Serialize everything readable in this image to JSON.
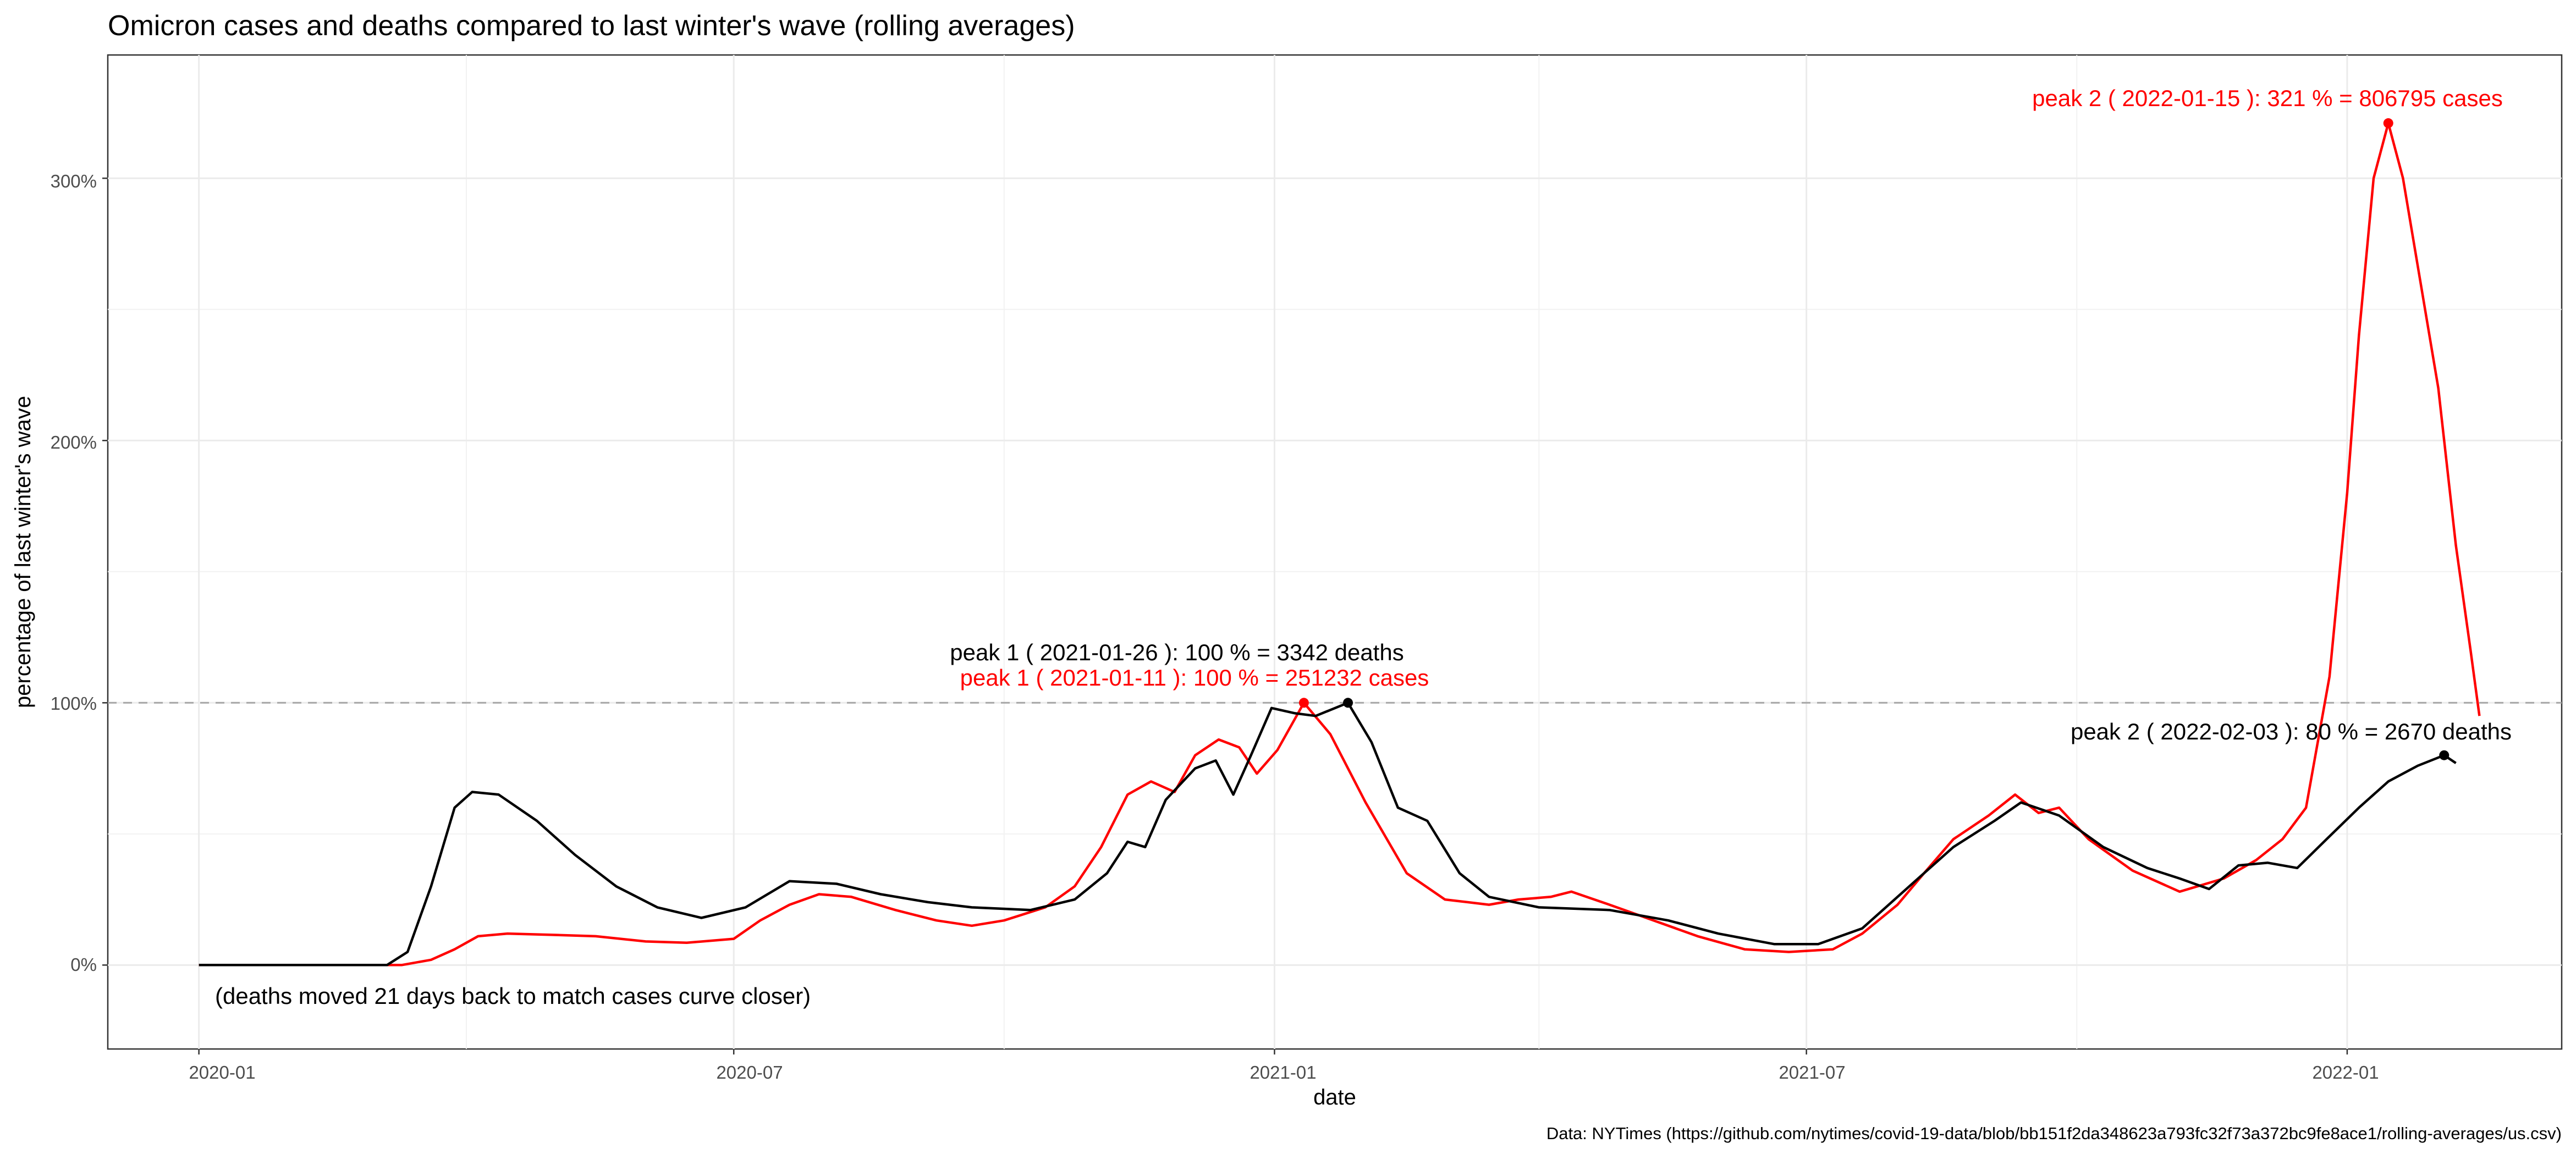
{
  "chart_data": {
    "type": "line",
    "title": "Omicron cases and deaths compared to last winter's wave (rolling averages)",
    "xlabel": "date",
    "ylabel": "percentage of last winter's wave",
    "caption": "Data: NYTimes (https://github.com/nytimes/covid-19-data/blob/bb151f2da348623a793fc32f73a372bc9fe8ace1/rolling-averages/us.csv)",
    "x_ticks": [
      "2020-01",
      "2020-07",
      "2021-01",
      "2021-07",
      "2022-01"
    ],
    "y_ticks": [
      "0%",
      "100%",
      "200%",
      "300%"
    ],
    "xlim": [
      "2019-12-01",
      "2022-03-15"
    ],
    "ylim": [
      -32,
      347
    ],
    "grid": true,
    "reference_line": {
      "y": 100,
      "style": "dashed",
      "color": "#a6a6a6"
    },
    "series": [
      {
        "color": "#ff0000",
        "points": [
          [
            "2020-01-01",
            0
          ],
          [
            "2020-02-15",
            0
          ],
          [
            "2020-03-10",
            0
          ],
          [
            "2020-03-20",
            2
          ],
          [
            "2020-03-28",
            6
          ],
          [
            "2020-04-05",
            11
          ],
          [
            "2020-04-15",
            12
          ],
          [
            "2020-05-01",
            11.5
          ],
          [
            "2020-05-15",
            11
          ],
          [
            "2020-06-01",
            9
          ],
          [
            "2020-06-15",
            8.5
          ],
          [
            "2020-07-01",
            10
          ],
          [
            "2020-07-10",
            17
          ],
          [
            "2020-07-20",
            23
          ],
          [
            "2020-07-30",
            27
          ],
          [
            "2020-08-10",
            26
          ],
          [
            "2020-08-25",
            21
          ],
          [
            "2020-09-08",
            17
          ],
          [
            "2020-09-20",
            15
          ],
          [
            "2020-10-01",
            17
          ],
          [
            "2020-10-15",
            22
          ],
          [
            "2020-10-25",
            30
          ],
          [
            "2020-11-03",
            45
          ],
          [
            "2020-11-12",
            65
          ],
          [
            "2020-11-20",
            70
          ],
          [
            "2020-11-28",
            66
          ],
          [
            "2020-12-05",
            80
          ],
          [
            "2020-12-13",
            86
          ],
          [
            "2020-12-20",
            83
          ],
          [
            "2020-12-26",
            73
          ],
          [
            "2021-01-02",
            82
          ],
          [
            "2021-01-11",
            100
          ],
          [
            "2021-01-20",
            88
          ],
          [
            "2021-02-01",
            62
          ],
          [
            "2021-02-15",
            35
          ],
          [
            "2021-02-28",
            25
          ],
          [
            "2021-03-15",
            23
          ],
          [
            "2021-03-25",
            25
          ],
          [
            "2021-04-05",
            26
          ],
          [
            "2021-04-12",
            28
          ],
          [
            "2021-04-25",
            23
          ],
          [
            "2021-05-10",
            17
          ],
          [
            "2021-05-25",
            11
          ],
          [
            "2021-06-10",
            6
          ],
          [
            "2021-06-25",
            5
          ],
          [
            "2021-07-10",
            6
          ],
          [
            "2021-07-20",
            12
          ],
          [
            "2021-08-01",
            23
          ],
          [
            "2021-08-10",
            35
          ],
          [
            "2021-08-20",
            48
          ],
          [
            "2021-09-01",
            57
          ],
          [
            "2021-09-10",
            65
          ],
          [
            "2021-09-18",
            58
          ],
          [
            "2021-09-25",
            60
          ],
          [
            "2021-10-05",
            48
          ],
          [
            "2021-10-20",
            36
          ],
          [
            "2021-11-05",
            28
          ],
          [
            "2021-11-20",
            33
          ],
          [
            "2021-12-01",
            40
          ],
          [
            "2021-12-10",
            48
          ],
          [
            "2021-12-18",
            60
          ],
          [
            "2021-12-26",
            110
          ],
          [
            "2022-01-01",
            180
          ],
          [
            "2022-01-05",
            240
          ],
          [
            "2022-01-10",
            300
          ],
          [
            "2022-01-15",
            321
          ],
          [
            "2022-01-20",
            300
          ],
          [
            "2022-01-26",
            260
          ],
          [
            "2022-02-01",
            220
          ],
          [
            "2022-02-07",
            160
          ],
          [
            "2022-02-12",
            120
          ],
          [
            "2022-02-15",
            95
          ]
        ]
      },
      {
        "color": "#000000",
        "points": [
          [
            "2020-01-01",
            0
          ],
          [
            "2020-02-15",
            0
          ],
          [
            "2020-03-05",
            0
          ],
          [
            "2020-03-12",
            5
          ],
          [
            "2020-03-20",
            30
          ],
          [
            "2020-03-28",
            60
          ],
          [
            "2020-04-03",
            66
          ],
          [
            "2020-04-12",
            65
          ],
          [
            "2020-04-25",
            55
          ],
          [
            "2020-05-08",
            42
          ],
          [
            "2020-05-22",
            30
          ],
          [
            "2020-06-05",
            22
          ],
          [
            "2020-06-20",
            18
          ],
          [
            "2020-07-05",
            22
          ],
          [
            "2020-07-20",
            32
          ],
          [
            "2020-08-05",
            31
          ],
          [
            "2020-08-20",
            27
          ],
          [
            "2020-09-05",
            24
          ],
          [
            "2020-09-20",
            22
          ],
          [
            "2020-10-10",
            21
          ],
          [
            "2020-10-25",
            25
          ],
          [
            "2020-11-05",
            35
          ],
          [
            "2020-11-12",
            47
          ],
          [
            "2020-11-18",
            45
          ],
          [
            "2020-11-25",
            63
          ],
          [
            "2020-12-05",
            75
          ],
          [
            "2020-12-12",
            78
          ],
          [
            "2020-12-18",
            65
          ],
          [
            "2020-12-24",
            80
          ],
          [
            "2020-12-31",
            98
          ],
          [
            "2021-01-08",
            96
          ],
          [
            "2021-01-15",
            95
          ],
          [
            "2021-01-26",
            100
          ],
          [
            "2021-02-03",
            85
          ],
          [
            "2021-02-12",
            60
          ],
          [
            "2021-02-22",
            55
          ],
          [
            "2021-03-05",
            35
          ],
          [
            "2021-03-15",
            26
          ],
          [
            "2021-04-01",
            22
          ],
          [
            "2021-04-25",
            21
          ],
          [
            "2021-05-15",
            17
          ],
          [
            "2021-06-01",
            12
          ],
          [
            "2021-06-20",
            8
          ],
          [
            "2021-07-05",
            8
          ],
          [
            "2021-07-20",
            14
          ],
          [
            "2021-08-05",
            30
          ],
          [
            "2021-08-20",
            45
          ],
          [
            "2021-09-03",
            55
          ],
          [
            "2021-09-12",
            62
          ],
          [
            "2021-09-25",
            57
          ],
          [
            "2021-10-10",
            45
          ],
          [
            "2021-10-25",
            37
          ],
          [
            "2021-11-05",
            33
          ],
          [
            "2021-11-15",
            29
          ],
          [
            "2021-11-25",
            38
          ],
          [
            "2021-12-05",
            39
          ],
          [
            "2021-12-15",
            37
          ],
          [
            "2021-12-25",
            48
          ],
          [
            "2022-01-05",
            60
          ],
          [
            "2022-01-15",
            70
          ],
          [
            "2022-01-25",
            76
          ],
          [
            "2022-02-03",
            80
          ],
          [
            "2022-02-07",
            77
          ]
        ]
      }
    ],
    "peaks": [
      {
        "x": "2021-01-11",
        "y": 100,
        "color": "#ff0000"
      },
      {
        "x": "2021-01-26",
        "y": 100,
        "color": "#000000"
      },
      {
        "x": "2022-01-15",
        "y": 321,
        "color": "#ff0000"
      },
      {
        "x": "2022-02-03",
        "y": 80,
        "color": "#000000"
      }
    ],
    "annotations": [
      {
        "text": "peak 1 ( 2021-01-26 ): 100 % = 3342 deaths",
        "color": "#000000"
      },
      {
        "text": "peak 1 ( 2021-01-11 ): 100 % = 251232 cases",
        "color": "#ff0000"
      },
      {
        "text": "peak 2 ( 2022-01-15 ): 321 % = 806795 cases",
        "color": "#ff0000"
      },
      {
        "text": "peak 2 ( 2022-02-03 ): 80 % = 2670 deaths",
        "color": "#000000"
      },
      {
        "text": "(deaths moved 21 days back to match cases curve closer)",
        "color": "#000000"
      }
    ]
  }
}
